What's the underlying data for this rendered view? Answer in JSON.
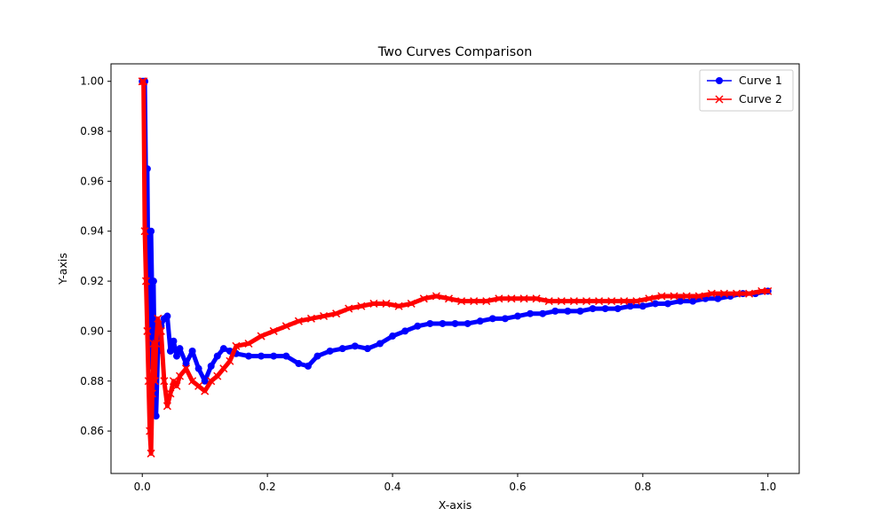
{
  "chart_data": {
    "type": "line",
    "title": "Two Curves Comparison",
    "xlabel": "X-axis",
    "ylabel": "Y-axis",
    "xlim": [
      -0.05,
      1.05
    ],
    "ylim": [
      0.843,
      1.007
    ],
    "xticks": [
      0.0,
      0.2,
      0.4,
      0.6,
      0.8,
      1.0
    ],
    "xtick_labels": [
      "0.0",
      "0.2",
      "0.4",
      "0.6",
      "0.8",
      "1.0"
    ],
    "yticks": [
      0.86,
      0.88,
      0.9,
      0.92,
      0.94,
      0.96,
      0.98,
      1.0
    ],
    "ytick_labels": [
      "0.86",
      "0.88",
      "0.90",
      "0.92",
      "0.94",
      "0.96",
      "0.98",
      "1.00"
    ],
    "grid": false,
    "legend": "top-right",
    "series": [
      {
        "name": "Curve 1",
        "color": "#0000ff",
        "marker": "circle",
        "x": [
          0.0,
          0.002,
          0.004,
          0.006,
          0.008,
          0.01,
          0.012,
          0.014,
          0.016,
          0.018,
          0.02,
          0.022,
          0.025,
          0.03,
          0.035,
          0.04,
          0.045,
          0.05,
          0.055,
          0.06,
          0.07,
          0.08,
          0.09,
          0.1,
          0.11,
          0.12,
          0.13,
          0.14,
          0.15,
          0.17,
          0.19,
          0.21,
          0.23,
          0.25,
          0.265,
          0.28,
          0.3,
          0.32,
          0.34,
          0.36,
          0.38,
          0.4,
          0.42,
          0.44,
          0.46,
          0.48,
          0.5,
          0.52,
          0.54,
          0.56,
          0.58,
          0.6,
          0.62,
          0.64,
          0.66,
          0.68,
          0.7,
          0.72,
          0.74,
          0.76,
          0.78,
          0.8,
          0.82,
          0.84,
          0.86,
          0.88,
          0.9,
          0.92,
          0.94,
          0.96,
          0.98,
          1.0
        ],
        "y": [
          1.0,
          1.0,
          1.0,
          0.955,
          0.965,
          0.905,
          0.886,
          0.94,
          0.91,
          0.92,
          0.88,
          0.866,
          0.892,
          0.902,
          0.905,
          0.906,
          0.892,
          0.896,
          0.89,
          0.893,
          0.887,
          0.892,
          0.885,
          0.88,
          0.886,
          0.89,
          0.893,
          0.892,
          0.891,
          0.89,
          0.89,
          0.89,
          0.89,
          0.887,
          0.886,
          0.89,
          0.892,
          0.893,
          0.894,
          0.893,
          0.895,
          0.898,
          0.9,
          0.902,
          0.903,
          0.903,
          0.903,
          0.903,
          0.904,
          0.905,
          0.905,
          0.906,
          0.907,
          0.907,
          0.908,
          0.908,
          0.908,
          0.909,
          0.909,
          0.909,
          0.91,
          0.91,
          0.911,
          0.911,
          0.912,
          0.912,
          0.913,
          0.913,
          0.914,
          0.915,
          0.915,
          0.916
        ]
      },
      {
        "name": "Curve 2",
        "color": "#ff0000",
        "marker": "x",
        "x": [
          0.0,
          0.002,
          0.004,
          0.006,
          0.008,
          0.01,
          0.012,
          0.014,
          0.016,
          0.018,
          0.02,
          0.022,
          0.025,
          0.03,
          0.035,
          0.04,
          0.045,
          0.05,
          0.055,
          0.06,
          0.07,
          0.08,
          0.09,
          0.1,
          0.11,
          0.12,
          0.13,
          0.14,
          0.15,
          0.17,
          0.19,
          0.21,
          0.23,
          0.25,
          0.27,
          0.29,
          0.31,
          0.33,
          0.35,
          0.37,
          0.39,
          0.41,
          0.43,
          0.45,
          0.47,
          0.49,
          0.51,
          0.53,
          0.55,
          0.57,
          0.59,
          0.61,
          0.63,
          0.65,
          0.67,
          0.69,
          0.71,
          0.73,
          0.75,
          0.77,
          0.79,
          0.81,
          0.83,
          0.85,
          0.87,
          0.89,
          0.91,
          0.93,
          0.95,
          0.97,
          0.99,
          1.0
        ],
        "y": [
          1.0,
          1.0,
          0.94,
          0.92,
          0.9,
          0.88,
          0.86,
          0.851,
          0.875,
          0.895,
          0.88,
          0.895,
          0.905,
          0.9,
          0.88,
          0.87,
          0.875,
          0.88,
          0.878,
          0.882,
          0.885,
          0.88,
          0.878,
          0.876,
          0.88,
          0.882,
          0.885,
          0.888,
          0.894,
          0.895,
          0.898,
          0.9,
          0.902,
          0.904,
          0.905,
          0.906,
          0.907,
          0.909,
          0.91,
          0.911,
          0.911,
          0.91,
          0.911,
          0.913,
          0.914,
          0.913,
          0.912,
          0.912,
          0.912,
          0.913,
          0.913,
          0.913,
          0.913,
          0.912,
          0.912,
          0.912,
          0.912,
          0.912,
          0.912,
          0.912,
          0.912,
          0.913,
          0.914,
          0.914,
          0.914,
          0.914,
          0.915,
          0.915,
          0.915,
          0.915,
          0.916,
          0.916
        ]
      }
    ]
  }
}
